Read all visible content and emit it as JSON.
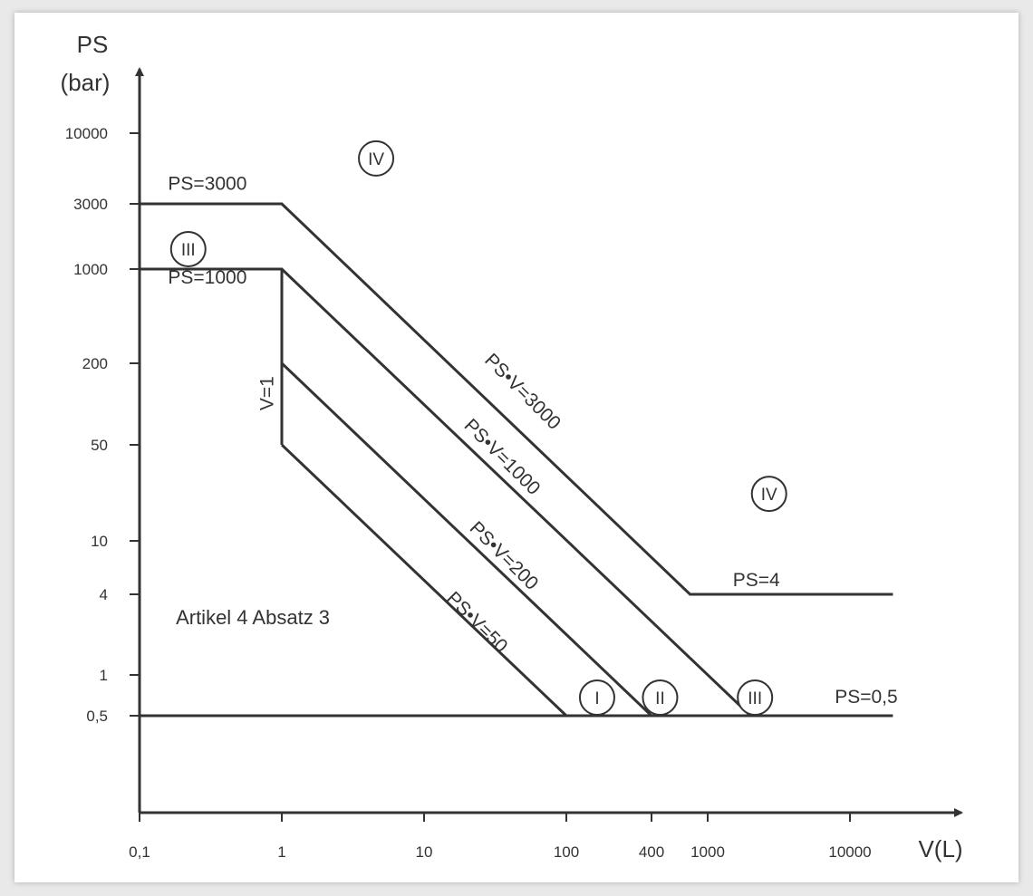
{
  "chart_data": {
    "type": "line",
    "x_scale": "log",
    "y_scale": "log",
    "grid": false,
    "xlabel": "V(L)",
    "ylabel_line1": "PS",
    "ylabel_line2": "(bar)",
    "xlim": [
      0.1,
      50000
    ],
    "ylim": [
      0.1,
      50000
    ],
    "x_ticks": [
      {
        "value": 0.1,
        "label": "0,1"
      },
      {
        "value": 1,
        "label": "1"
      },
      {
        "value": 10,
        "label": "10"
      },
      {
        "value": 100,
        "label": "100"
      },
      {
        "value": 400,
        "label": "400"
      },
      {
        "value": 1000,
        "label": "1000"
      },
      {
        "value": 10000,
        "label": "10000"
      }
    ],
    "y_ticks": [
      {
        "value": 0.5,
        "label": "0,5"
      },
      {
        "value": 1,
        "label": "1"
      },
      {
        "value": 4,
        "label": "4"
      },
      {
        "value": 10,
        "label": "10"
      },
      {
        "value": 50,
        "label": "50"
      },
      {
        "value": 200,
        "label": "200"
      },
      {
        "value": 1000,
        "label": "1000"
      },
      {
        "value": 3000,
        "label": "3000"
      },
      {
        "value": 10000,
        "label": "10000"
      }
    ],
    "series": [
      {
        "points": [
          [
            0.1,
            3000
          ],
          [
            1,
            3000
          ],
          [
            750,
            4
          ],
          [
            20000,
            4
          ]
        ]
      },
      {
        "points": [
          [
            0.1,
            1000
          ],
          [
            1,
            1000
          ],
          [
            2000,
            0.5
          ]
        ]
      },
      {
        "points": [
          [
            1,
            200
          ],
          [
            400,
            0.5
          ]
        ]
      },
      {
        "points": [
          [
            1,
            50
          ],
          [
            100,
            0.5
          ]
        ]
      },
      {
        "points": [
          [
            1,
            1000
          ],
          [
            1,
            50
          ]
        ]
      },
      {
        "points": [
          [
            0.1,
            0.5
          ],
          [
            20000,
            0.5
          ]
        ]
      }
    ],
    "line_labels": [
      {
        "text": "PS=3000",
        "x": 0.3,
        "y": 3800,
        "angle": 0
      },
      {
        "text": "PS=1000",
        "x": 0.3,
        "y": 780,
        "angle": 0
      },
      {
        "text": "PS=4",
        "x": 2200,
        "y": 4.6,
        "angle": 0
      },
      {
        "text": "PS=0,5",
        "x": 13000,
        "y": 0.62,
        "angle": 0
      },
      {
        "text": "PS•V=3000",
        "x": 46,
        "y": 115,
        "angle": 45
      },
      {
        "text": "PS•V=1000",
        "x": 33,
        "y": 38,
        "angle": 45
      },
      {
        "text": "PS•V=200",
        "x": 34,
        "y": 7.2,
        "angle": 45
      },
      {
        "text": "PS•V=50",
        "x": 22,
        "y": 2.3,
        "angle": 45
      },
      {
        "text": "V=1",
        "x": 0.87,
        "y": 120,
        "angle": -90
      }
    ],
    "annotations": [
      {
        "text": "Artikel 4 Absatz 3",
        "x": 0.18,
        "y": 2.4
      }
    ],
    "category_markers": [
      {
        "label": "IV",
        "x": 4.6,
        "y": 6500
      },
      {
        "label": "III",
        "x": 0.22,
        "y": 1400
      },
      {
        "label": "IV",
        "x": 2700,
        "y": 22
      },
      {
        "label": "I",
        "x": 165,
        "y": 0.68
      },
      {
        "label": "II",
        "x": 460,
        "y": 0.68
      },
      {
        "label": "III",
        "x": 2150,
        "y": 0.68
      }
    ]
  }
}
